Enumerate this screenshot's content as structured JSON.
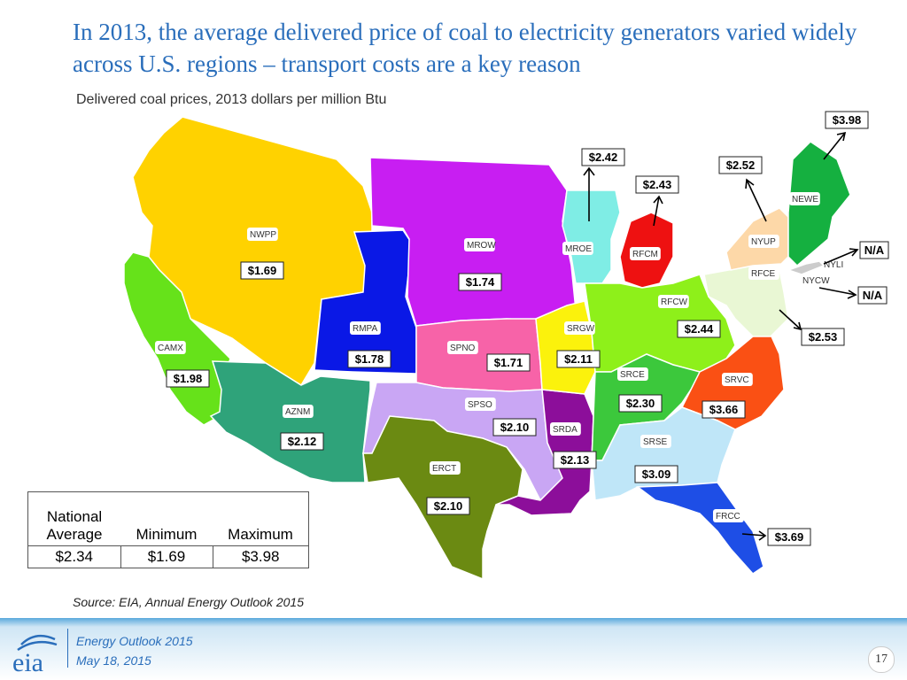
{
  "title": "In 2013, the average delivered price of coal to electricity generators varied widely across U.S. regions – transport costs are a key reason",
  "subtitle": "Delivered coal prices, 2013 dollars per million Btu",
  "regions": [
    {
      "code": "NWPP",
      "price": "$1.69",
      "color": "#ffd200"
    },
    {
      "code": "CAMX",
      "price": "$1.98",
      "color": "#66e21a"
    },
    {
      "code": "AZNM",
      "price": "$2.12",
      "color": "#2fa37a"
    },
    {
      "code": "RMPA",
      "price": "$1.78",
      "color": "#0a18e6"
    },
    {
      "code": "MROW",
      "price": "$1.74",
      "color": "#c81ef2"
    },
    {
      "code": "SPNO",
      "price": "$1.71",
      "color": "#f763a8"
    },
    {
      "code": "SPSO",
      "price": "$2.10",
      "color": "#c9a6f4"
    },
    {
      "code": "ERCT",
      "price": "$2.10",
      "color": "#6b8a12"
    },
    {
      "code": "SRDA",
      "price": "$2.13",
      "color": "#8c0e9a"
    },
    {
      "code": "SRGW",
      "price": "$2.11",
      "color": "#fbf20c"
    },
    {
      "code": "MROE",
      "price": "$2.42",
      "color": "#7fede5"
    },
    {
      "code": "RFCM",
      "price": "$2.43",
      "color": "#ee1111"
    },
    {
      "code": "RFCW",
      "price": "$2.44",
      "color": "#8ef01a"
    },
    {
      "code": "SRCE",
      "price": "$2.30",
      "color": "#3cc83c"
    },
    {
      "code": "SRVC",
      "price": "$3.66",
      "color": "#fa5014"
    },
    {
      "code": "SRSE",
      "price": "$3.09",
      "color": "#bfe6f8"
    },
    {
      "code": "FRCC",
      "price": "$3.69",
      "color": "#1e4ee6"
    },
    {
      "code": "RFCE",
      "price": "$2.53",
      "color": "#e9f7d4"
    },
    {
      "code": "NYUP",
      "price": "$2.52",
      "color": "#fdd8a8"
    },
    {
      "code": "NEWE",
      "price": "$3.98",
      "color": "#15b040"
    },
    {
      "code": "NYLI",
      "price": "N/A",
      "color": "#cccccc"
    },
    {
      "code": "NYCW",
      "price": "N/A",
      "color": "#cccccc"
    }
  ],
  "stats": {
    "headers": [
      "National Average",
      "Minimum",
      "Maximum"
    ],
    "values": [
      "$2.34",
      "$1.69",
      "$3.98"
    ]
  },
  "source": "Source:  EIA, Annual Energy Outlook 2015",
  "footer": {
    "logo_text": "eia",
    "title": "Energy  Outlook 2015",
    "date": "May 18, 2015",
    "page": "17"
  }
}
